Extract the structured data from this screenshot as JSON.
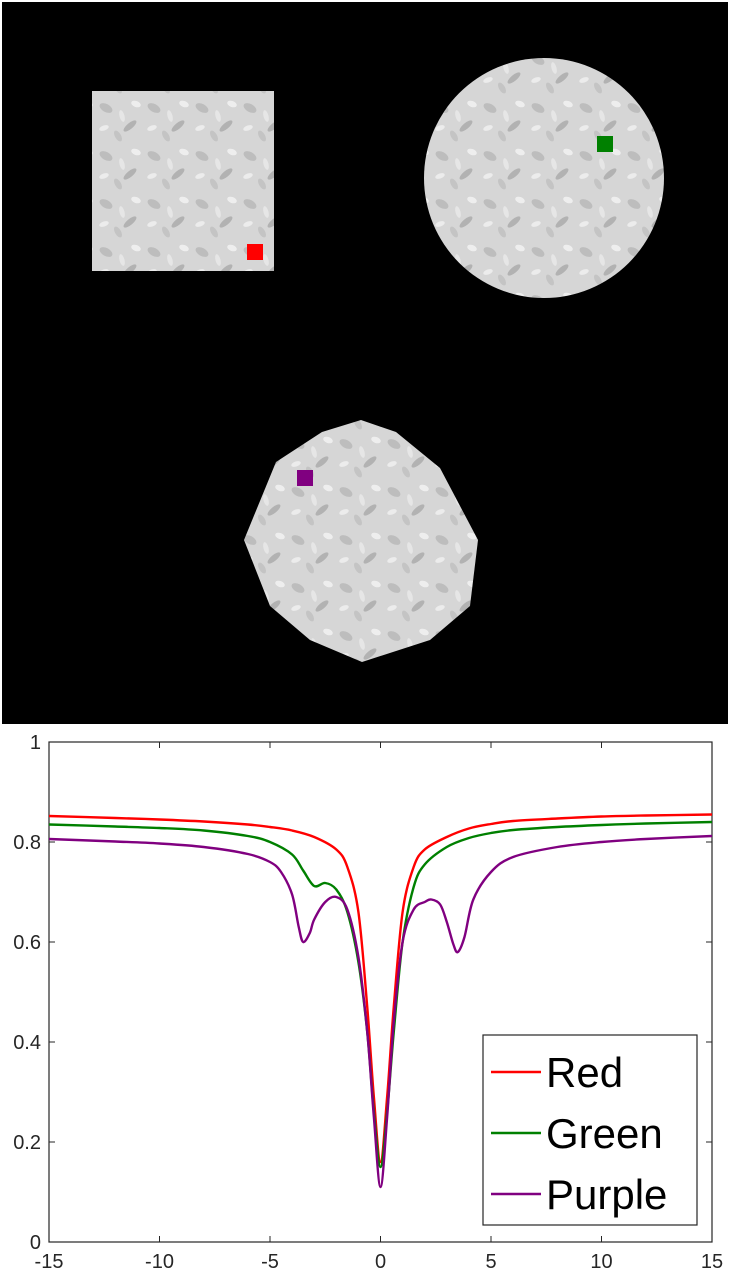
{
  "image_panel": {
    "background": "#000000",
    "phantoms": [
      {
        "shape": "square",
        "marker_color": "#ff0000"
      },
      {
        "shape": "circle",
        "marker_color": "#008000"
      },
      {
        "shape": "octagon",
        "marker_color": "#800080"
      }
    ]
  },
  "chart_data": {
    "type": "line",
    "title": "",
    "xlabel": "",
    "ylabel": "",
    "xlim": [
      -15,
      15
    ],
    "ylim": [
      0,
      1
    ],
    "xticks": [
      -15,
      -10,
      -5,
      0,
      5,
      10,
      15
    ],
    "yticks": [
      0,
      0.2,
      0.4,
      0.6,
      0.8,
      1
    ],
    "xtick_labels": [
      "-15",
      "-10",
      "-5",
      "0",
      "5",
      "10",
      "15"
    ],
    "ytick_labels": [
      "0",
      "0.2",
      "0.4",
      "0.6",
      "0.8",
      "1"
    ],
    "grid": false,
    "legend_position": "bottom-right",
    "series": [
      {
        "name": "Red",
        "color": "#ff0000",
        "x": [
          -15,
          -12,
          -10,
          -8,
          -6,
          -5,
          -4,
          -3,
          -2,
          -1.5,
          -1,
          -0.6,
          -0.3,
          0,
          0.3,
          0.6,
          1,
          1.5,
          2,
          3,
          4,
          5,
          6,
          8,
          10,
          12,
          15
        ],
        "y": [
          0.852,
          0.848,
          0.845,
          0.841,
          0.835,
          0.83,
          0.823,
          0.81,
          0.785,
          0.75,
          0.66,
          0.47,
          0.29,
          0.16,
          0.29,
          0.47,
          0.66,
          0.75,
          0.785,
          0.81,
          0.827,
          0.836,
          0.842,
          0.847,
          0.851,
          0.853,
          0.855
        ]
      },
      {
        "name": "Green",
        "color": "#008000",
        "x": [
          -15,
          -12,
          -10,
          -8,
          -6,
          -5,
          -4,
          -3.5,
          -3,
          -2.5,
          -2,
          -1.5,
          -1,
          -0.6,
          -0.3,
          0,
          0.3,
          0.6,
          1,
          1.5,
          2,
          3,
          4,
          5,
          6,
          8,
          10,
          12,
          15
        ],
        "y": [
          0.835,
          0.831,
          0.828,
          0.823,
          0.812,
          0.8,
          0.775,
          0.743,
          0.712,
          0.718,
          0.705,
          0.66,
          0.56,
          0.42,
          0.26,
          0.15,
          0.26,
          0.42,
          0.6,
          0.71,
          0.755,
          0.79,
          0.808,
          0.818,
          0.824,
          0.83,
          0.834,
          0.837,
          0.84
        ]
      },
      {
        "name": "Purple",
        "color": "#800080",
        "x": [
          -15,
          -12,
          -10,
          -8,
          -6,
          -5,
          -4.5,
          -4,
          -3.7,
          -3.5,
          -3.2,
          -3,
          -2.5,
          -2,
          -1.5,
          -1,
          -0.6,
          -0.3,
          0,
          0.3,
          0.6,
          1,
          1.5,
          2,
          2.3,
          2.7,
          3,
          3.3,
          3.5,
          3.8,
          4.2,
          5,
          6,
          8,
          10,
          12,
          15
        ],
        "y": [
          0.806,
          0.801,
          0.797,
          0.79,
          0.776,
          0.76,
          0.74,
          0.695,
          0.63,
          0.6,
          0.618,
          0.645,
          0.68,
          0.69,
          0.665,
          0.57,
          0.42,
          0.25,
          0.11,
          0.25,
          0.44,
          0.6,
          0.665,
          0.68,
          0.685,
          0.675,
          0.64,
          0.595,
          0.58,
          0.61,
          0.685,
          0.74,
          0.77,
          0.79,
          0.8,
          0.806,
          0.812
        ]
      }
    ]
  }
}
